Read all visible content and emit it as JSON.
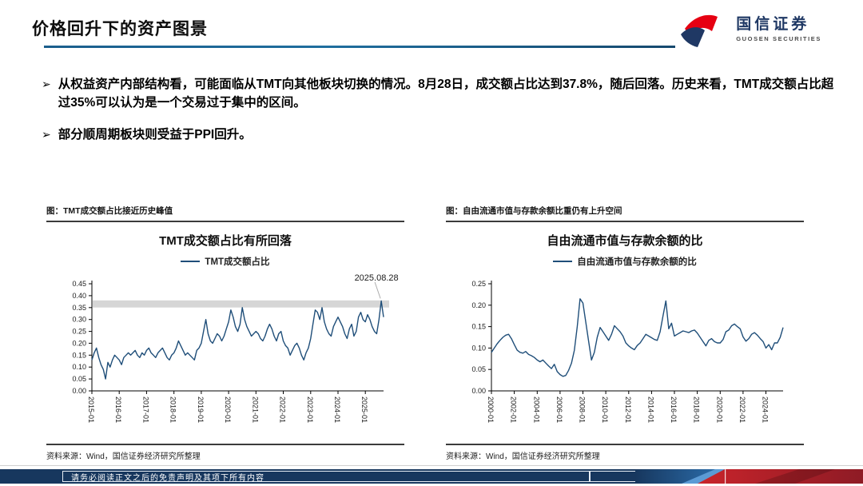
{
  "header": {
    "title": "价格回升下的资产图景",
    "logo": {
      "name_cn": "国信证券",
      "name_en": "GUOSEN SECURITIES"
    }
  },
  "bullets": [
    {
      "marker": "➢",
      "text": "从权益资产内部结构看，可能面临从TMT向其他板块切换的情况。8月28日，成交额占比达到37.8%，随后回落。历史来看，TMT成交额占比超过35%可以认为是一个交易过于集中的区间。"
    },
    {
      "marker": "➢",
      "text": "部分顺周期板块则受益于PPI回升。"
    }
  ],
  "figures": [
    {
      "caption": "图：TMT成交额占比接近历史峰值",
      "source": "资料来源：Wind，国信证券经济研究所整理"
    },
    {
      "caption": "图：自由流通市值与存款余额比重仍有上升空间",
      "source": "资料来源：Wind，国信证券经济研究所整理"
    }
  ],
  "chart_data": [
    {
      "type": "line",
      "title": "TMT成交额占比有所回落",
      "legend": "TMT成交额占比",
      "line_color": "#1F4E79",
      "ylim": [
        0,
        0.45
      ],
      "y_ticks": [
        "0.00",
        "0.05",
        "0.10",
        "0.15",
        "0.20",
        "0.25",
        "0.30",
        "0.35",
        "0.40",
        "0.45"
      ],
      "x_start": "2015-01",
      "x_freq": "monthly",
      "x_tick_labels": [
        "2015-01",
        "2016-01",
        "2017-01",
        "2018-01",
        "2019-01",
        "2020-01",
        "2021-01",
        "2022-01",
        "2023-01",
        "2024-01",
        "2025-01"
      ],
      "x_tick_indices": [
        0,
        12,
        24,
        36,
        48,
        60,
        72,
        84,
        96,
        108,
        120
      ],
      "band": [
        0.35,
        0.38
      ],
      "band_color": "#D6D6D6",
      "annotation": {
        "text": "2025.08.28",
        "point_index": 127
      },
      "values": [
        0.13,
        0.16,
        0.18,
        0.14,
        0.11,
        0.09,
        0.05,
        0.12,
        0.1,
        0.13,
        0.15,
        0.14,
        0.13,
        0.11,
        0.14,
        0.15,
        0.16,
        0.15,
        0.16,
        0.17,
        0.15,
        0.14,
        0.16,
        0.15,
        0.17,
        0.18,
        0.16,
        0.15,
        0.14,
        0.16,
        0.17,
        0.18,
        0.16,
        0.14,
        0.13,
        0.15,
        0.16,
        0.18,
        0.21,
        0.19,
        0.17,
        0.15,
        0.16,
        0.15,
        0.14,
        0.13,
        0.17,
        0.18,
        0.2,
        0.25,
        0.3,
        0.24,
        0.21,
        0.2,
        0.22,
        0.24,
        0.23,
        0.21,
        0.23,
        0.26,
        0.29,
        0.34,
        0.31,
        0.27,
        0.25,
        0.28,
        0.35,
        0.3,
        0.27,
        0.25,
        0.23,
        0.24,
        0.25,
        0.24,
        0.22,
        0.21,
        0.23,
        0.26,
        0.28,
        0.26,
        0.23,
        0.21,
        0.24,
        0.25,
        0.21,
        0.19,
        0.18,
        0.15,
        0.17,
        0.19,
        0.2,
        0.18,
        0.15,
        0.13,
        0.16,
        0.18,
        0.22,
        0.28,
        0.34,
        0.33,
        0.3,
        0.35,
        0.29,
        0.26,
        0.24,
        0.23,
        0.27,
        0.29,
        0.31,
        0.29,
        0.27,
        0.24,
        0.22,
        0.26,
        0.28,
        0.23,
        0.25,
        0.31,
        0.33,
        0.3,
        0.29,
        0.32,
        0.3,
        0.27,
        0.25,
        0.24,
        0.3,
        0.378,
        0.31
      ]
    },
    {
      "type": "line",
      "title": "自由流通市值与存款余额的比",
      "legend": "自由流通市值与存款余额的比",
      "line_color": "#1F4E79",
      "ylim": [
        0,
        0.25
      ],
      "y_ticks": [
        "0.00",
        "0.05",
        "0.10",
        "0.15",
        "0.20",
        "0.25"
      ],
      "x_start": "2000-01",
      "x_freq": "quarterly",
      "x_tick_labels": [
        "2000-01",
        "2002-01",
        "2004-01",
        "2006-01",
        "2008-01",
        "2010-01",
        "2012-01",
        "2014-01",
        "2016-01",
        "2018-01",
        "2020-01",
        "2022-01",
        "2024-01"
      ],
      "x_tick_indices": [
        0,
        8,
        16,
        24,
        32,
        40,
        48,
        56,
        64,
        72,
        80,
        88,
        96
      ],
      "values": [
        0.09,
        0.1,
        0.11,
        0.118,
        0.125,
        0.13,
        0.132,
        0.122,
        0.108,
        0.095,
        0.09,
        0.088,
        0.092,
        0.085,
        0.082,
        0.078,
        0.072,
        0.068,
        0.072,
        0.065,
        0.058,
        0.052,
        0.062,
        0.045,
        0.038,
        0.034,
        0.036,
        0.048,
        0.065,
        0.095,
        0.15,
        0.215,
        0.205,
        0.16,
        0.115,
        0.072,
        0.09,
        0.125,
        0.148,
        0.138,
        0.128,
        0.118,
        0.132,
        0.152,
        0.145,
        0.138,
        0.128,
        0.112,
        0.105,
        0.1,
        0.096,
        0.106,
        0.112,
        0.122,
        0.132,
        0.128,
        0.124,
        0.12,
        0.118,
        0.138,
        0.175,
        0.21,
        0.145,
        0.158,
        0.128,
        0.132,
        0.136,
        0.14,
        0.138,
        0.136,
        0.14,
        0.142,
        0.135,
        0.125,
        0.115,
        0.105,
        0.118,
        0.122,
        0.115,
        0.112,
        0.112,
        0.12,
        0.138,
        0.142,
        0.152,
        0.156,
        0.15,
        0.145,
        0.126,
        0.116,
        0.122,
        0.132,
        0.136,
        0.13,
        0.122,
        0.115,
        0.1,
        0.108,
        0.096,
        0.112,
        0.112,
        0.125,
        0.148
      ]
    }
  ],
  "footer": {
    "disclaimer": "请务必阅读正文之后的免责声明及其项下所有内容"
  },
  "colors": {
    "accent_blue": "#1F4E79",
    "logo_red": "#E60012",
    "logo_navy": "#1F3864",
    "footer_bg": "#17375E",
    "footer_red": "#A6242F",
    "band_gray": "#D6D6D6"
  }
}
